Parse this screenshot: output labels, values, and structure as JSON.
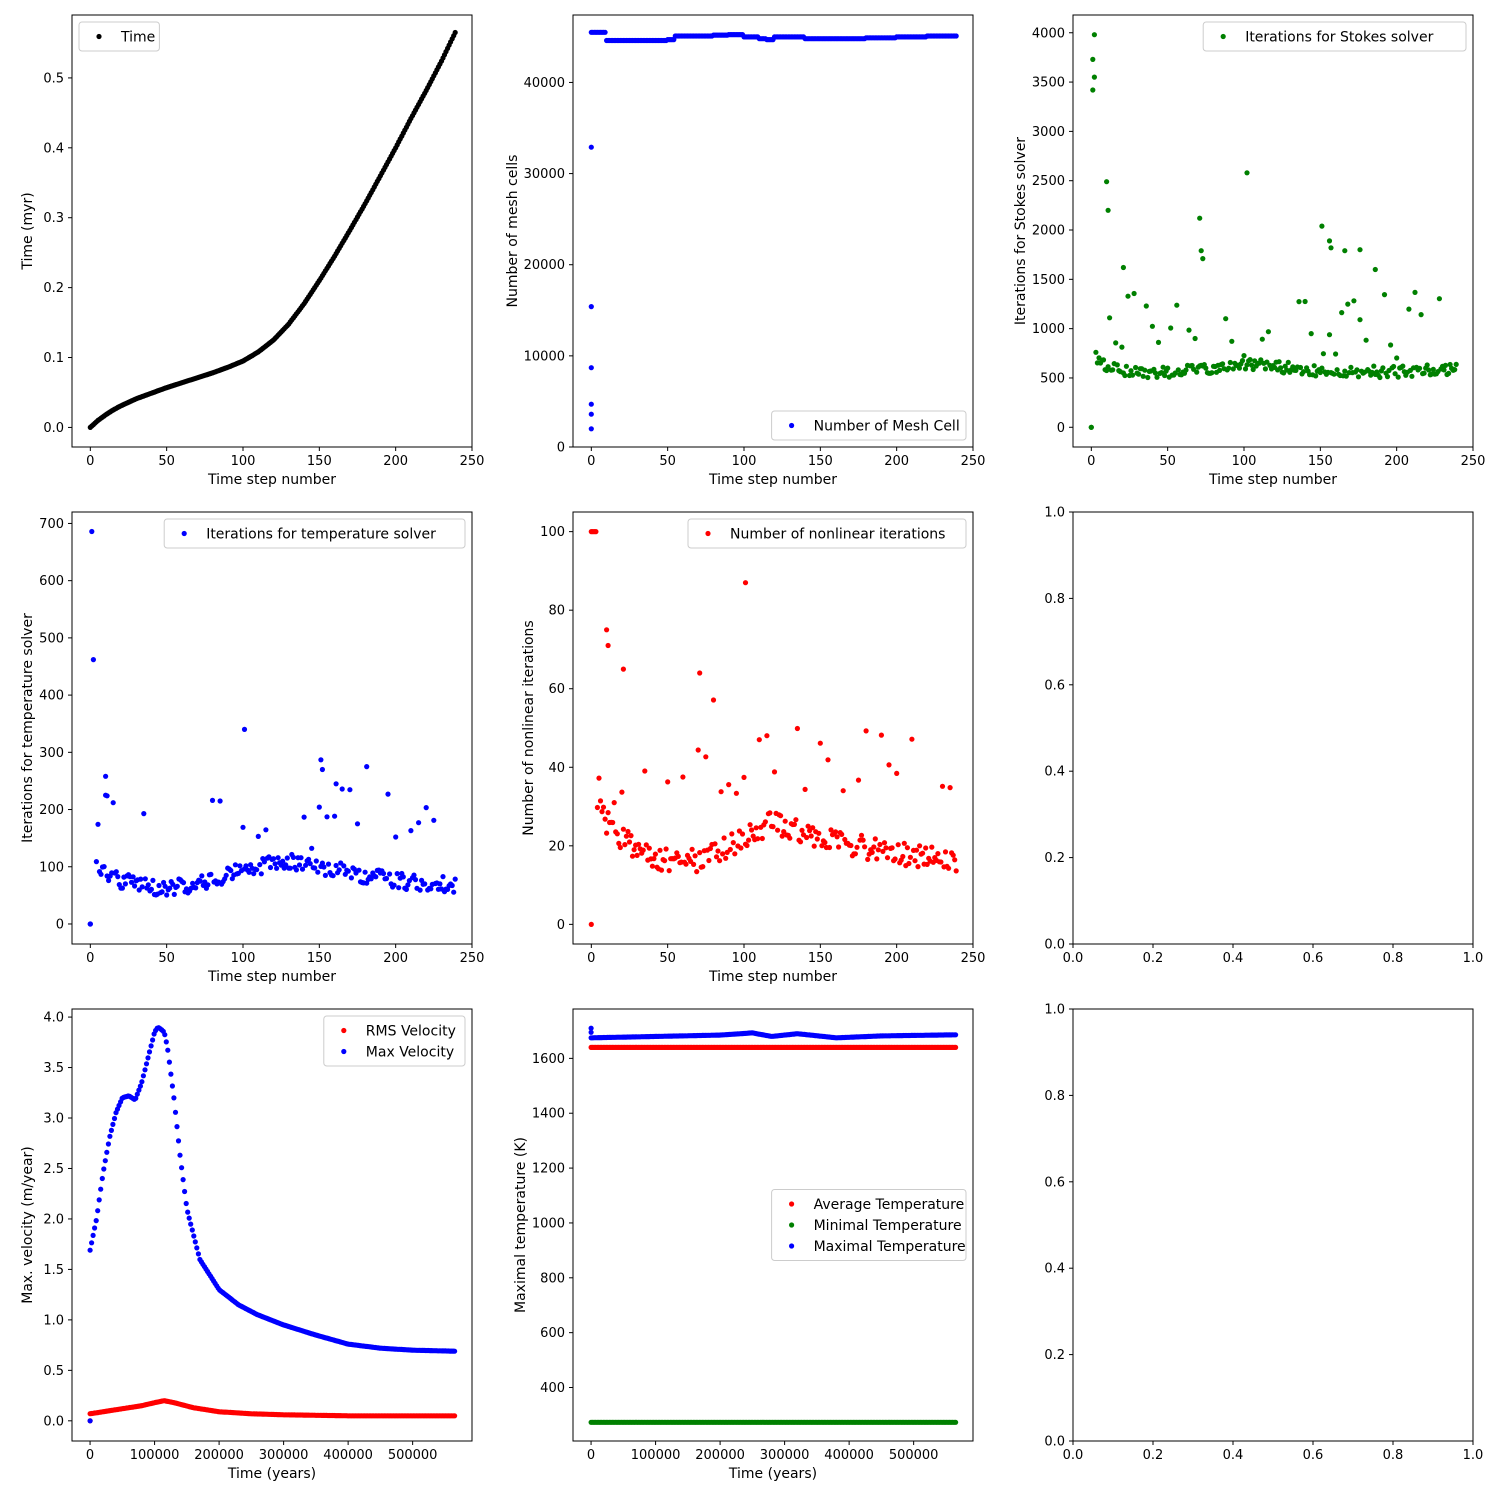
{
  "figure": {
    "background": "#ffffff",
    "marker": "point"
  },
  "chart_data": [
    {
      "id": "time",
      "type": "scatter",
      "xlabel": "Time step number",
      "ylabel": "Time (myr)",
      "xlim": [
        -12,
        250
      ],
      "ylim": [
        -0.028,
        0.59
      ],
      "xticks": [
        0,
        50,
        100,
        150,
        200,
        250
      ],
      "yticks": [
        0.0,
        0.1,
        0.2,
        0.3,
        0.4,
        0.5
      ],
      "yfmt": 1,
      "legend": "upper-left",
      "series": [
        {
          "name": "Time",
          "color": "#000000",
          "kind": "curve",
          "n": 240,
          "x": [
            0,
            5,
            10,
            15,
            20,
            25,
            30,
            40,
            50,
            60,
            70,
            80,
            90,
            100,
            110,
            120,
            130,
            140,
            150,
            160,
            170,
            180,
            190,
            200,
            210,
            220,
            230,
            239
          ],
          "y": [
            0.0,
            0.01,
            0.018,
            0.025,
            0.031,
            0.036,
            0.041,
            0.049,
            0.057,
            0.064,
            0.071,
            0.078,
            0.086,
            0.095,
            0.108,
            0.125,
            0.148,
            0.177,
            0.21,
            0.245,
            0.282,
            0.32,
            0.36,
            0.4,
            0.442,
            0.482,
            0.524,
            0.565
          ]
        }
      ]
    },
    {
      "id": "mesh",
      "type": "scatter",
      "xlabel": "Time step number",
      "ylabel": "Number of mesh cells",
      "xlim": [
        -12,
        250
      ],
      "ylim": [
        0,
        47400
      ],
      "xticks": [
        0,
        50,
        100,
        150,
        200,
        250
      ],
      "yticks": [
        0,
        10000,
        20000,
        30000,
        40000
      ],
      "yfmt": 0,
      "legend": "lower-right",
      "series": [
        {
          "name": "Number of Mesh Cell",
          "color": "#0000ff",
          "kind": "mixed",
          "n": 240,
          "x": [
            0,
            9,
            10,
            20,
            40,
            50,
            55,
            60,
            80,
            90,
            100,
            110,
            115,
            120,
            130,
            140,
            150,
            160,
            180,
            200,
            220,
            239
          ],
          "y": [
            45500,
            45500,
            44600,
            44600,
            44600,
            44700,
            45100,
            45100,
            45200,
            45250,
            45000,
            44800,
            44700,
            45000,
            45000,
            44800,
            44800,
            44800,
            44900,
            45000,
            45100,
            45100
          ],
          "extra_x": [
            0,
            0,
            0,
            0,
            0,
            0
          ],
          "extra_y": [
            2000,
            3600,
            4700,
            8700,
            15400,
            32900
          ]
        }
      ]
    },
    {
      "id": "stokes",
      "type": "scatter",
      "xlabel": "Time step number",
      "ylabel": "Iterations for Stokes solver",
      "xlim": [
        -12,
        250
      ],
      "ylim": [
        -200,
        4180
      ],
      "xticks": [
        0,
        50,
        100,
        150,
        200,
        250
      ],
      "yticks": [
        0,
        500,
        1000,
        1500,
        2000,
        2500,
        3000,
        3500,
        4000
      ],
      "yfmt": 0,
      "legend": "upper-right",
      "series": [
        {
          "name": "Iterations for Stokes solver",
          "color": "#008000",
          "kind": "noise",
          "n": 240,
          "base": [
            [
              0,
              700
            ],
            [
              10,
              620
            ],
            [
              30,
              560
            ],
            [
              60,
              570
            ],
            [
              100,
              650
            ],
            [
              150,
              570
            ],
            [
              200,
              560
            ],
            [
              239,
              600
            ]
          ],
          "spread": 60,
          "spikes_min": 700,
          "spikes_max": 1400,
          "spike_every": 4,
          "extra_x": [
            0,
            0,
            1,
            1,
            2,
            2,
            3,
            10,
            11,
            21,
            71,
            72,
            73,
            102,
            151,
            156,
            157,
            166,
            176,
            186
          ],
          "extra_y": [
            0,
            0,
            3420,
            3730,
            3550,
            3980,
            760,
            2490,
            2200,
            1620,
            2120,
            1790,
            1710,
            2580,
            2040,
            1890,
            1820,
            1790,
            1800,
            1600
          ]
        }
      ]
    },
    {
      "id": "temp_iter",
      "type": "scatter",
      "xlabel": "Time step number",
      "ylabel": "Iterations for temperature solver",
      "xlim": [
        -12,
        250
      ],
      "ylim": [
        -35,
        720
      ],
      "xticks": [
        0,
        50,
        100,
        150,
        200,
        250
      ],
      "yticks": [
        0,
        100,
        200,
        300,
        400,
        500,
        600,
        700
      ],
      "yfmt": 0,
      "legend": "upper-right",
      "series": [
        {
          "name": "Iterations for temperature solver",
          "color": "#0000ff",
          "kind": "noise",
          "n": 240,
          "base": [
            [
              0,
              110
            ],
            [
              15,
              80
            ],
            [
              40,
              62
            ],
            [
              70,
              68
            ],
            [
              100,
              95
            ],
            [
              130,
              110
            ],
            [
              160,
              95
            ],
            [
              200,
              75
            ],
            [
              239,
              68
            ]
          ],
          "spread": 14,
          "spikes_min": 130,
          "spikes_max": 240,
          "spike_every": 5,
          "extra_x": [
            0,
            0,
            1,
            2,
            10,
            11,
            101,
            151,
            152,
            161,
            181
          ],
          "extra_y": [
            0,
            0,
            686,
            462,
            258,
            224,
            340,
            287,
            270,
            245,
            275
          ]
        }
      ]
    },
    {
      "id": "nonlinear",
      "type": "scatter",
      "xlabel": "Time step number",
      "ylabel": "Number of nonlinear iterations",
      "xlim": [
        -12,
        250
      ],
      "ylim": [
        -5,
        105
      ],
      "xticks": [
        0,
        50,
        100,
        150,
        200,
        250
      ],
      "yticks": [
        0,
        20,
        40,
        60,
        80,
        100
      ],
      "yfmt": 0,
      "legend": "upper-right",
      "series": [
        {
          "name": "Number of nonlinear iterations",
          "color": "#ff0000",
          "kind": "noise",
          "n": 240,
          "base": [
            [
              0,
              36
            ],
            [
              10,
              26
            ],
            [
              20,
              22
            ],
            [
              40,
              17
            ],
            [
              70,
              16
            ],
            [
              100,
              22
            ],
            [
              120,
              26
            ],
            [
              150,
              22
            ],
            [
              200,
              18
            ],
            [
              239,
              16
            ]
          ],
          "spread": 3,
          "spikes_min": 28,
          "spikes_max": 58,
          "spike_every": 5,
          "extra_x": [
            0,
            0,
            1,
            2,
            3,
            10,
            11,
            21,
            71,
            101
          ],
          "extra_y": [
            0,
            100,
            100,
            100,
            100,
            75,
            71,
            65,
            64,
            87
          ]
        }
      ]
    },
    {
      "id": "empty1",
      "type": "scatter",
      "xlim": [
        0,
        1
      ],
      "ylim": [
        0,
        1
      ],
      "xticks": [
        0.0,
        0.2,
        0.4,
        0.6,
        0.8,
        1.0
      ],
      "yticks": [
        0.0,
        0.2,
        0.4,
        0.6,
        0.8,
        1.0
      ],
      "xfmt": 1,
      "yfmt": 1,
      "series": []
    },
    {
      "id": "velocity",
      "type": "scatter",
      "xlabel": "Time (years)",
      "ylabel": "Max. velocity (m/year)",
      "xlim": [
        -28000,
        592000
      ],
      "ylim": [
        -0.2,
        4.08
      ],
      "xticks": [
        0,
        100000,
        200000,
        300000,
        400000,
        500000
      ],
      "yticks": [
        0.0,
        0.5,
        1.0,
        1.5,
        2.0,
        2.5,
        3.0,
        3.5,
        4.0
      ],
      "yfmt": 1,
      "legend": "upper-right",
      "series": [
        {
          "name": "RMS Velocity",
          "color": "#ff0000",
          "kind": "curve",
          "n": 240,
          "x": [
            0,
            20000,
            50000,
            80000,
            100000,
            115000,
            130000,
            160000,
            200000,
            250000,
            300000,
            400000,
            565000
          ],
          "y": [
            0.07,
            0.09,
            0.12,
            0.15,
            0.18,
            0.2,
            0.18,
            0.13,
            0.09,
            0.07,
            0.06,
            0.05,
            0.05
          ],
          "extra_x": [
            0
          ],
          "extra_y": [
            0
          ]
        },
        {
          "name": "Max Velocity",
          "color": "#0000ff",
          "kind": "curve",
          "n": 240,
          "x": [
            0,
            10000,
            20000,
            30000,
            40000,
            50000,
            60000,
            70000,
            80000,
            90000,
            100000,
            105000,
            110000,
            115000,
            120000,
            130000,
            140000,
            150000,
            170000,
            200000,
            230000,
            260000,
            300000,
            350000,
            400000,
            450000,
            500000,
            565000
          ],
          "y": [
            1.69,
            2.0,
            2.45,
            2.8,
            3.05,
            3.2,
            3.22,
            3.18,
            3.35,
            3.6,
            3.85,
            3.9,
            3.88,
            3.85,
            3.7,
            3.2,
            2.6,
            2.1,
            1.6,
            1.3,
            1.15,
            1.05,
            0.95,
            0.85,
            0.76,
            0.72,
            0.7,
            0.69
          ],
          "extra_x": [
            0
          ],
          "extra_y": [
            0
          ]
        }
      ]
    },
    {
      "id": "temperature",
      "type": "scatter",
      "xlabel": "Time (years)",
      "ylabel": "Maximal temperature (K)",
      "xlim": [
        -28000,
        592000
      ],
      "ylim": [
        205,
        1780
      ],
      "xticks": [
        0,
        100000,
        200000,
        300000,
        400000,
        500000
      ],
      "yticks": [
        400,
        600,
        800,
        1000,
        1200,
        1400,
        1600
      ],
      "yfmt": 0,
      "legend": "center-right",
      "series": [
        {
          "name": "Average Temperature",
          "color": "#ff0000",
          "kind": "curve",
          "n": 240,
          "x": [
            0,
            565000
          ],
          "y": [
            1640,
            1640
          ]
        },
        {
          "name": "Minimal Temperature",
          "color": "#008000",
          "kind": "curve",
          "n": 240,
          "x": [
            0,
            565000
          ],
          "y": [
            273,
            273
          ]
        },
        {
          "name": "Maximal Temperature",
          "color": "#0000ff",
          "kind": "curve",
          "n": 240,
          "x": [
            0,
            100000,
            200000,
            250000,
            280000,
            320000,
            380000,
            450000,
            565000
          ],
          "y": [
            1675,
            1680,
            1685,
            1693,
            1680,
            1690,
            1675,
            1682,
            1686
          ],
          "extra_x": [
            0,
            0
          ],
          "extra_y": [
            1710,
            1695
          ]
        }
      ]
    },
    {
      "id": "empty2",
      "type": "scatter",
      "xlim": [
        0,
        1
      ],
      "ylim": [
        0,
        1
      ],
      "xticks": [
        0.0,
        0.2,
        0.4,
        0.6,
        0.8,
        1.0
      ],
      "yticks": [
        0.0,
        0.2,
        0.4,
        0.6,
        0.8,
        1.0
      ],
      "xfmt": 1,
      "yfmt": 1,
      "series": []
    }
  ]
}
